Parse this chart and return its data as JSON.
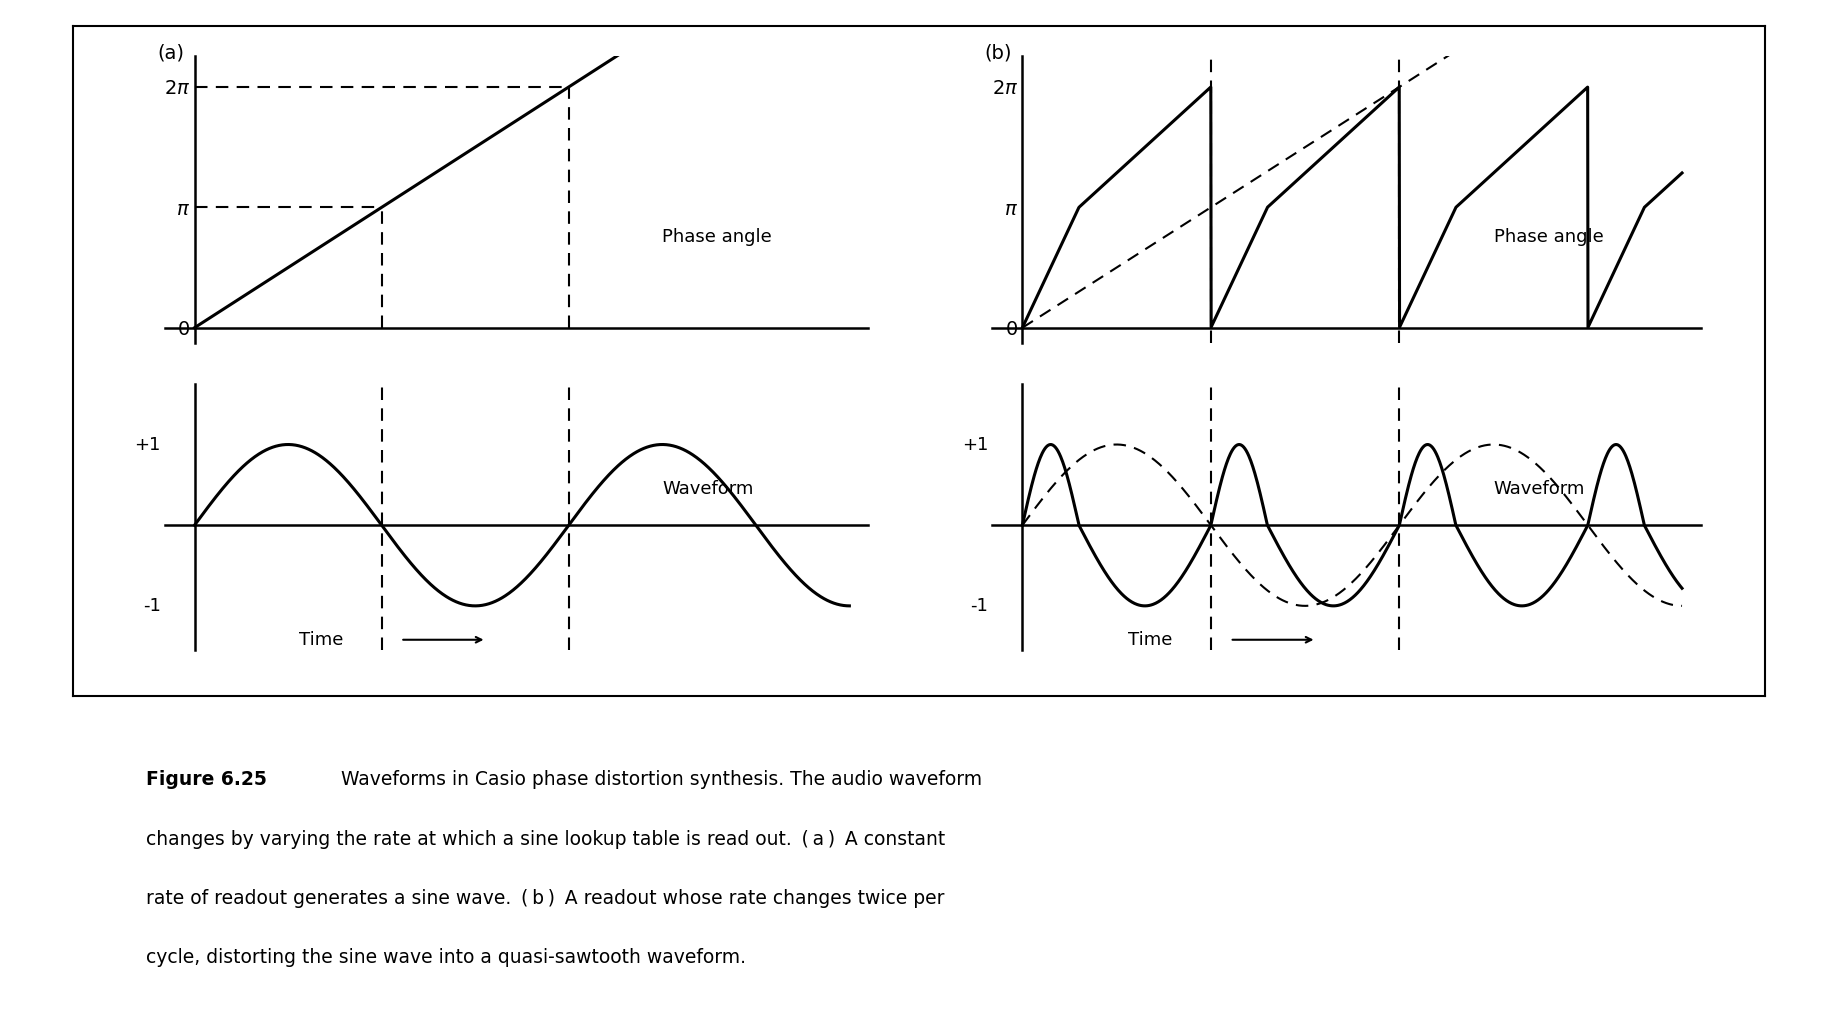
{
  "fig_width": 18.29,
  "fig_height": 10.24,
  "background_color": "#ffffff",
  "text_color": "#000000",
  "label_a": "(a)",
  "label_b": "(b)",
  "phase_label": "Phase angle",
  "waveform_label": "Waveform",
  "time_label": "Time",
  "caption_bold": "Figure 6.25",
  "caption_text": "Waveforms in Casio phase distortion synthesis. The audio waveform changes by varying the rate at which a sine lookup table is read out. (a) A constant rate of readout generates a sine wave. (b) A readout whose rate changes twice per cycle, distorting the sine wave into a quasi-sawtooth waveform."
}
